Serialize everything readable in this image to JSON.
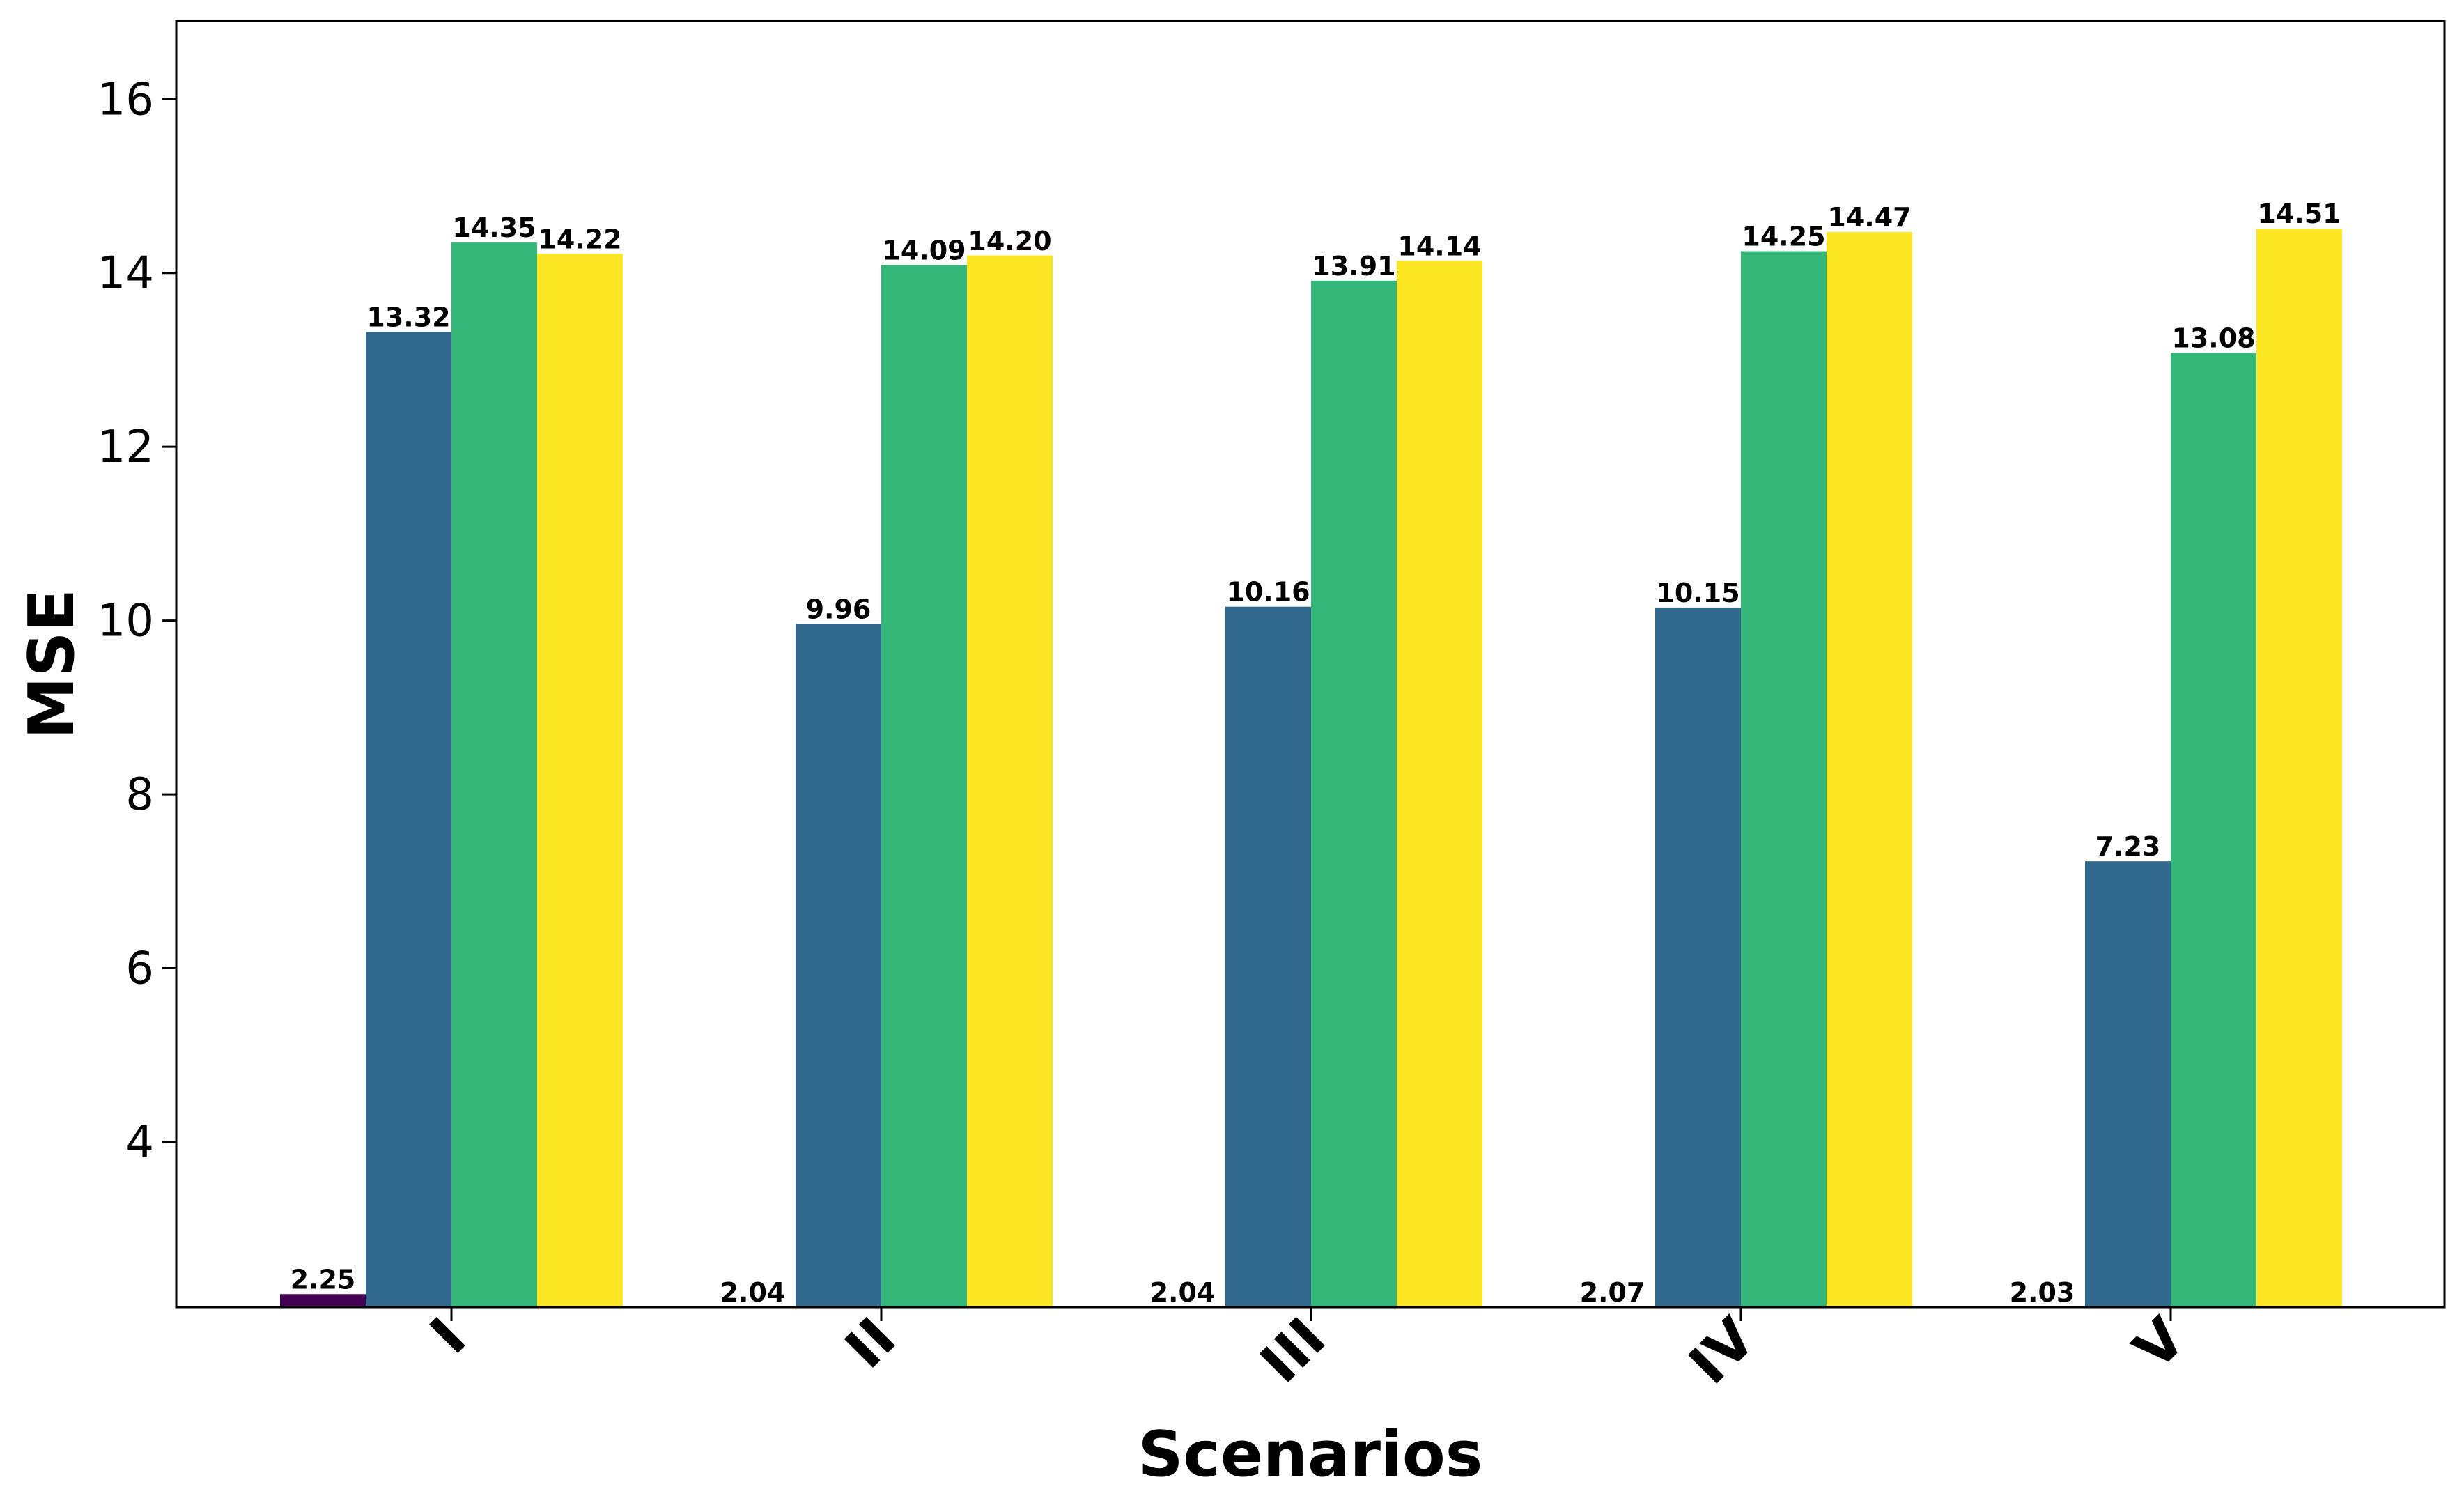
{
  "chart_data": {
    "type": "bar",
    "title": "",
    "xlabel": "Scenarios",
    "ylabel": "MSE",
    "categories": [
      "I",
      "II",
      "III",
      "IV",
      "V"
    ],
    "series": [
      {
        "values": [
          2.25,
          2.04,
          2.04,
          2.07,
          2.03
        ],
        "color": "#440154"
      },
      {
        "values": [
          13.32,
          9.96,
          10.16,
          10.15,
          7.23
        ],
        "color": "#31688e"
      },
      {
        "values": [
          14.35,
          14.09,
          13.91,
          14.25,
          13.08
        ],
        "color": "#35b779"
      },
      {
        "values": [
          14.22,
          14.2,
          14.14,
          14.47,
          14.51
        ],
        "color": "#fde725"
      }
    ],
    "value_labels": [
      [
        "2.25",
        "2.04",
        "2.04",
        "2.07",
        "2.03"
      ],
      [
        "13.32",
        "9.96",
        "10.16",
        "10.15",
        "7.23"
      ],
      [
        "14.35",
        "14.09",
        "13.91",
        "14.25",
        "13.08"
      ],
      [
        "14.22",
        "14.20",
        "14.14",
        "14.47",
        "14.51"
      ]
    ],
    "ylim": [
      2.1,
      16.9
    ],
    "yticks": [
      4,
      6,
      8,
      10,
      12,
      14,
      16
    ],
    "ytick_labels": [
      "4",
      "6",
      "8",
      "10",
      "12",
      "14",
      "16"
    ],
    "grid": false,
    "legend": "none"
  }
}
